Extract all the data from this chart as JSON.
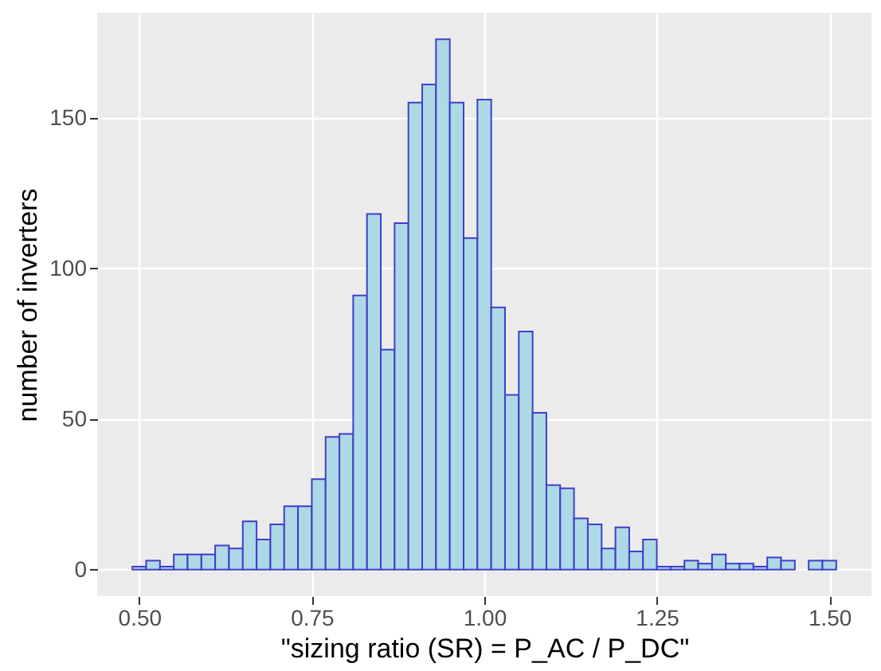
{
  "chart_data": {
    "type": "histogram",
    "xlabel": "\"sizing ratio (SR) = P_AC / P_DC\"",
    "ylabel": "number of inverters",
    "bins": [
      0.49,
      0.51,
      0.53,
      0.55,
      0.57,
      0.59,
      0.61,
      0.63,
      0.65,
      0.67,
      0.69,
      0.71,
      0.73,
      0.75,
      0.77,
      0.79,
      0.81,
      0.83,
      0.85,
      0.87,
      0.89,
      0.91,
      0.93,
      0.95,
      0.97,
      0.99,
      1.01,
      1.03,
      1.05,
      1.07,
      1.09,
      1.11,
      1.13,
      1.15,
      1.17,
      1.19,
      1.21,
      1.23,
      1.25,
      1.27,
      1.29,
      1.31,
      1.33,
      1.35,
      1.37,
      1.39,
      1.41,
      1.43,
      1.45,
      1.47,
      1.49,
      1.51
    ],
    "values": [
      1,
      3,
      1,
      5,
      5,
      5,
      8,
      7,
      16,
      10,
      15,
      21,
      21,
      30,
      44,
      45,
      91,
      118,
      73,
      115,
      155,
      161,
      176,
      155,
      110,
      156,
      87,
      58,
      79,
      52,
      28,
      27,
      17,
      15,
      7,
      14,
      6,
      10,
      1,
      1,
      3,
      2,
      5,
      2,
      2,
      1,
      4,
      3,
      0,
      3,
      3
    ],
    "color": "#add8e6",
    "xlim": [
      0.439,
      1.561
    ],
    "ylim": [
      -8.8,
      184.8
    ],
    "xticks": [
      {
        "value": 0.5,
        "label": "0.50"
      },
      {
        "value": 0.75,
        "label": "0.75"
      },
      {
        "value": 1.0,
        "label": "1.00"
      },
      {
        "value": 1.25,
        "label": "1.25"
      },
      {
        "value": 1.5,
        "label": "1.50"
      }
    ],
    "yticks": [
      0,
      50,
      100,
      150
    ],
    "grid": true
  }
}
